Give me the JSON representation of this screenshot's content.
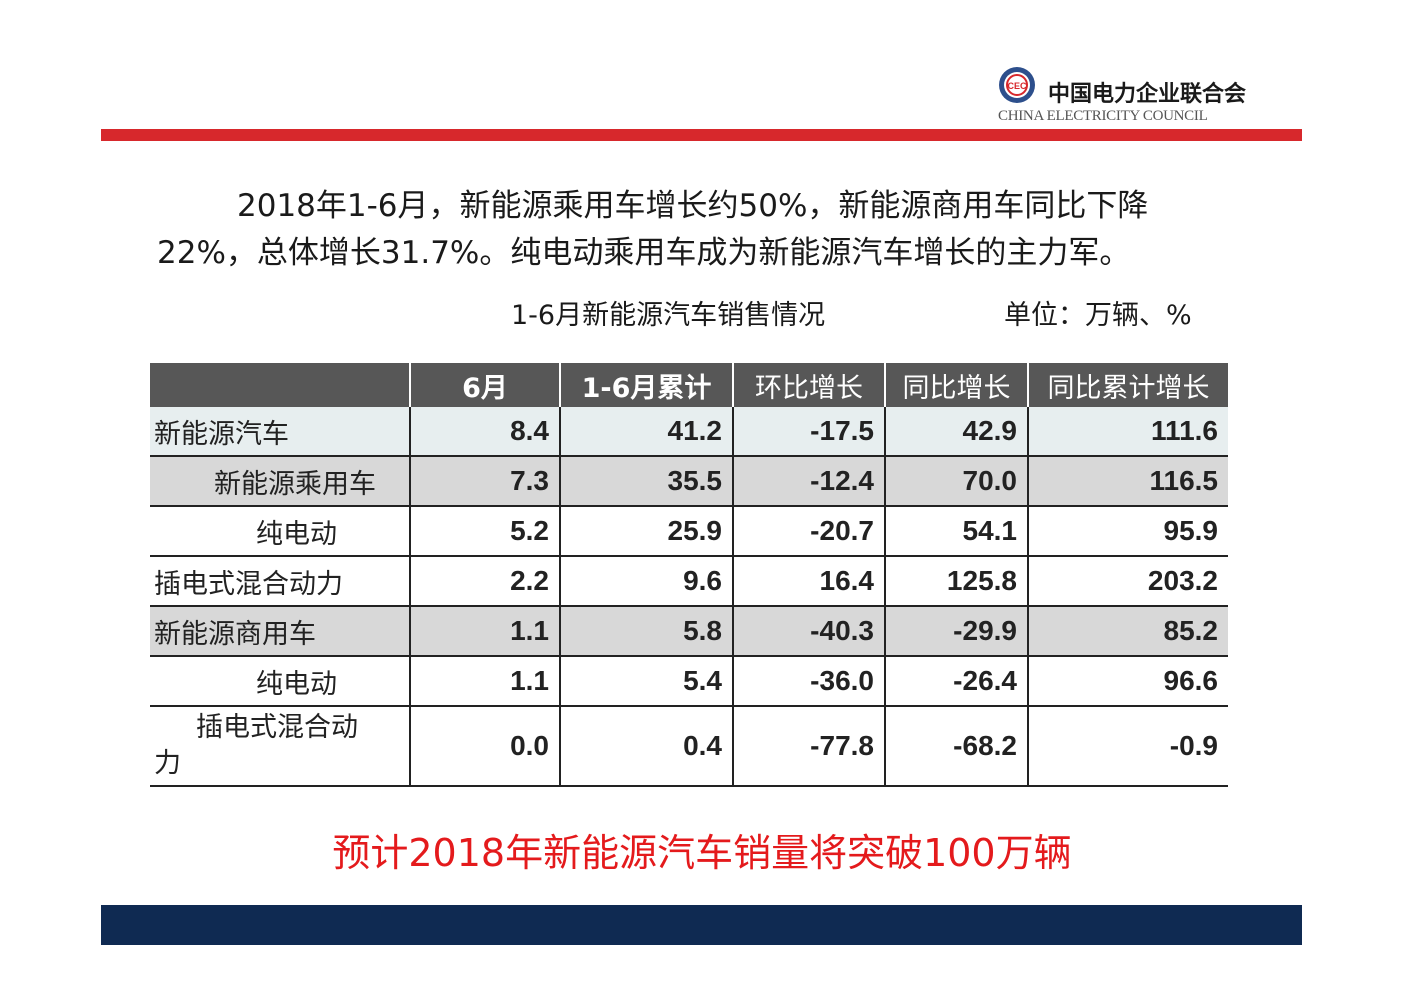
{
  "header": {
    "org_name_cn": "中国电力企业联合会",
    "org_name_en": "CHINA ELECTRICITY COUNCIL",
    "emblem_letters": "CEC",
    "accent_red": "#d7282c",
    "footer_navy": "#0f2a52"
  },
  "intro": {
    "text": "2018年1-6月，新能源乘用车增长约50%，新能源商用车同比下降22%，总体增长31.7%。纯电动乘用车成为新能源汽车增长的主力军。"
  },
  "table": {
    "title": "1-6月新能源汽车销售情况",
    "unit": "单位：万辆、%",
    "columns": [
      "",
      "6月",
      "1-6月累计",
      "环比增长",
      "同比增长",
      "同比累计增长"
    ],
    "rows": [
      {
        "label": "新能源汽车",
        "values": [
          "8.4",
          "41.2",
          "-17.5",
          "42.9",
          "111.6"
        ]
      },
      {
        "label": "新能源乘用车",
        "values": [
          "7.3",
          "35.5",
          "-12.4",
          "70.0",
          "116.5"
        ]
      },
      {
        "label": "纯电动",
        "values": [
          "5.2",
          "25.9",
          "-20.7",
          "54.1",
          "95.9"
        ]
      },
      {
        "label": "插电式混合动力",
        "values": [
          "2.2",
          "9.6",
          "16.4",
          "125.8",
          "203.2"
        ]
      },
      {
        "label": "新能源商用车",
        "values": [
          "1.1",
          "5.8",
          "-40.3",
          "-29.9",
          "85.2"
        ]
      },
      {
        "label": "纯电动",
        "values": [
          "1.1",
          "5.4",
          "-36.0",
          "-26.4",
          "96.6"
        ]
      },
      {
        "label_line1": "插电式混合动",
        "label_line2": "力",
        "values": [
          "0.0",
          "0.4",
          "-77.8",
          "-68.2",
          "-0.9"
        ]
      }
    ]
  },
  "forecast": {
    "text": "预计2018年新能源汽车销量将突破100万辆",
    "color": "#e41a1c"
  }
}
